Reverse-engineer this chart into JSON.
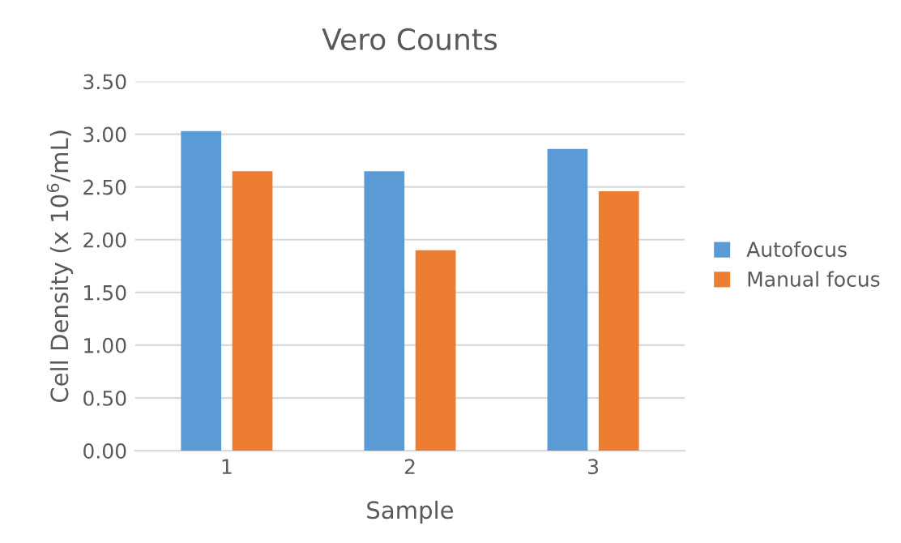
{
  "chart_data": {
    "type": "bar",
    "title": "Vero Counts",
    "xlabel": "Sample",
    "ylabel": "Cell Density (x 10$^{6}$/mL)",
    "categories": [
      "1",
      "2",
      "3"
    ],
    "series": [
      {
        "name": "Autofocus",
        "color": "#5b9bd5",
        "values": [
          3.03,
          2.65,
          2.86
        ]
      },
      {
        "name": "Manual focus",
        "color": "#ed7d31",
        "values": [
          2.65,
          1.9,
          2.46
        ]
      }
    ],
    "ylim": [
      0,
      3.5
    ],
    "yticks": [
      {
        "value": 0,
        "label": "0.00"
      },
      {
        "value": 0.5,
        "label": "0.50"
      },
      {
        "value": 1,
        "label": "1.00"
      },
      {
        "value": 1.5,
        "label": "1.50"
      },
      {
        "value": 2,
        "label": "2.00"
      },
      {
        "value": 2.5,
        "label": "2.50"
      },
      {
        "value": 3,
        "label": "3.00"
      },
      {
        "value": 3.5,
        "label": "3.50"
      }
    ],
    "grid": "y",
    "legend": "right"
  }
}
